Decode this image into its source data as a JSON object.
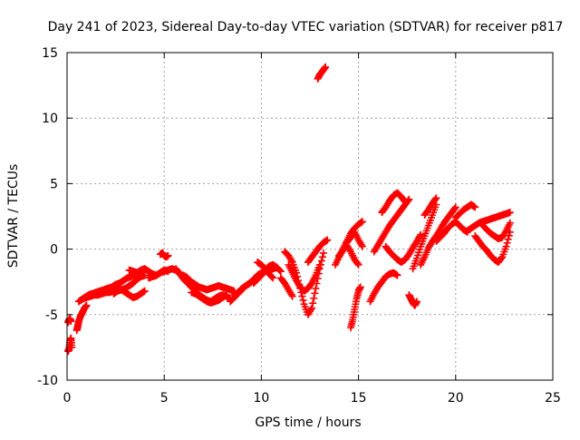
{
  "chart_data": {
    "type": "scatter",
    "title": "Day 241 of 2023, Sidereal Day-to-day VTEC variation (SDTVAR) for receiver p817",
    "xlabel": "GPS time / hours",
    "ylabel": "SDTVAR / TECUs",
    "xlim": [
      0,
      25
    ],
    "ylim": [
      -10,
      15
    ],
    "x_ticks": [
      0,
      5,
      10,
      15,
      20,
      25
    ],
    "y_ticks": [
      -10,
      -5,
      0,
      5,
      10,
      15
    ],
    "x_tick_labels": [
      "0",
      "5",
      "10",
      "15",
      "20",
      "25"
    ],
    "y_tick_labels": [
      "-10",
      "-5",
      "0",
      "5",
      "10",
      "15"
    ],
    "grid": true,
    "marker": "+",
    "series": [
      {
        "name": "SDTVAR",
        "color": "#ff0000",
        "segments": [
          {
            "x": [
              0.05,
              0.1,
              0.15,
              0.2,
              0.25
            ],
            "y": [
              -7.8,
              -7.6,
              -7.0,
              -6.8,
              -7.5
            ]
          },
          {
            "x": [
              0.05,
              0.1,
              0.15,
              0.2
            ],
            "y": [
              -5.6,
              -5.4,
              -5.3,
              -5.5
            ]
          },
          {
            "x": [
              0.5,
              0.55,
              0.6,
              0.7,
              0.8,
              0.9,
              1.0
            ],
            "y": [
              -6.2,
              -5.9,
              -5.5,
              -5.1,
              -4.8,
              -4.5,
              -4.3
            ]
          },
          {
            "x": [
              0.6,
              0.8,
              1.0,
              1.2,
              1.4,
              1.6,
              1.8,
              2.0,
              2.2,
              2.4,
              2.6,
              2.8,
              3.0,
              3.2,
              3.4,
              3.6,
              3.8,
              4.0
            ],
            "y": [
              -4.0,
              -3.8,
              -3.7,
              -3.6,
              -3.5,
              -3.5,
              -3.4,
              -3.3,
              -3.3,
              -3.2,
              -3.1,
              -3.1,
              -3.0,
              -2.8,
              -2.6,
              -2.3,
              -2.1,
              -2.0
            ]
          },
          {
            "x": [
              0.7,
              0.9,
              1.1,
              1.3,
              1.5,
              1.7,
              1.9,
              2.1,
              2.3,
              2.5,
              2.7,
              2.9,
              3.1,
              3.3,
              3.5,
              3.7
            ],
            "y": [
              -3.9,
              -3.7,
              -3.5,
              -3.4,
              -3.3,
              -3.2,
              -3.1,
              -3.0,
              -2.9,
              -2.7,
              -2.6,
              -2.4,
              -2.2,
              -2.1,
              -1.9,
              -1.8
            ]
          },
          {
            "x": [
              2.4,
              2.6,
              2.8,
              3.0,
              3.2,
              3.4,
              3.6,
              3.8,
              4.0
            ],
            "y": [
              -3.4,
              -3.2,
              -3.1,
              -3.3,
              -3.5,
              -3.7,
              -3.6,
              -3.4,
              -3.2
            ]
          },
          {
            "x": [
              3.2,
              3.4,
              3.6,
              3.8,
              4.0,
              4.2,
              4.4,
              4.6,
              4.8,
              5.0,
              5.2
            ],
            "y": [
              -1.6,
              -1.7,
              -1.8,
              -1.6,
              -1.5,
              -1.7,
              -1.9,
              -2.0,
              -1.8,
              -1.6,
              -1.7
            ]
          },
          {
            "x": [
              4.2,
              4.4,
              4.6,
              4.8,
              5.0,
              5.2,
              5.4,
              5.6,
              5.8
            ],
            "y": [
              -2.2,
              -2.1,
              -2.0,
              -1.8,
              -1.7,
              -1.6,
              -1.5,
              -1.6,
              -1.8
            ]
          },
          {
            "x": [
              4.8,
              4.9,
              5.0,
              5.1,
              5.2
            ],
            "y": [
              -0.4,
              -0.3,
              -0.5,
              -0.6,
              -0.5
            ]
          },
          {
            "x": [
              5.6,
              5.8,
              6.0,
              6.2,
              6.4,
              6.6,
              6.8,
              7.0,
              7.2,
              7.4,
              7.6,
              7.8,
              8.0,
              8.2,
              8.4
            ],
            "y": [
              -1.5,
              -1.9,
              -2.3,
              -2.6,
              -2.9,
              -3.2,
              -3.5,
              -3.7,
              -3.9,
              -4.0,
              -3.8,
              -3.6,
              -3.5,
              -3.6,
              -3.8
            ]
          },
          {
            "x": [
              6.0,
              6.2,
              6.4,
              6.6,
              6.8,
              7.0,
              7.2,
              7.4,
              7.6,
              7.8,
              8.0,
              8.2,
              8.4,
              8.6
            ],
            "y": [
              -2.0,
              -2.2,
              -2.5,
              -2.7,
              -2.9,
              -3.0,
              -3.1,
              -3.0,
              -2.9,
              -2.8,
              -2.9,
              -3.0,
              -3.1,
              -3.2
            ]
          },
          {
            "x": [
              6.4,
              6.6,
              6.8,
              7.0,
              7.2,
              7.4,
              7.6,
              7.8,
              8.0,
              8.2
            ],
            "y": [
              -3.3,
              -3.4,
              -3.6,
              -3.8,
              -4.0,
              -4.1,
              -4.0,
              -3.9,
              -3.7,
              -3.5
            ]
          },
          {
            "x": [
              8.4,
              8.6,
              8.8,
              9.0,
              9.2,
              9.4,
              9.6,
              9.8,
              10.0
            ],
            "y": [
              -4.0,
              -3.7,
              -3.4,
              -3.1,
              -2.8,
              -2.6,
              -2.4,
              -2.2,
              -2.0
            ]
          },
          {
            "x": [
              8.6,
              8.8,
              9.0,
              9.2,
              9.4,
              9.6,
              9.8,
              10.0,
              10.2,
              10.4,
              10.6,
              10.8
            ],
            "y": [
              -3.5,
              -3.3,
              -3.0,
              -2.8,
              -2.6,
              -2.3,
              -2.0,
              -1.8,
              -1.7,
              -1.6,
              -1.5,
              -1.4
            ]
          },
          {
            "x": [
              9.6,
              9.8,
              10.0,
              10.2,
              10.4,
              10.6,
              10.8,
              11.0
            ],
            "y": [
              -2.6,
              -2.3,
              -2.0,
              -1.6,
              -1.3,
              -1.2,
              -1.4,
              -1.7
            ]
          },
          {
            "x": [
              9.8,
              10.0,
              10.2,
              10.4,
              10.6
            ],
            "y": [
              -1.0,
              -1.2,
              -1.5,
              -1.9,
              -2.2
            ]
          },
          {
            "x": [
              11.2,
              11.4,
              11.6,
              11.8,
              12.0,
              12.2,
              12.4,
              12.6,
              12.8,
              13.0,
              13.2
            ],
            "y": [
              -0.2,
              -0.5,
              -1.0,
              -1.8,
              -3.0,
              -4.2,
              -5.0,
              -4.5,
              -3.0,
              -1.5,
              -0.3
            ]
          },
          {
            "x": [
              11.4,
              11.6,
              11.8,
              12.0,
              12.2,
              12.4,
              12.6,
              12.8,
              13.0
            ],
            "y": [
              -1.2,
              -1.8,
              -2.4,
              -2.9,
              -3.2,
              -3.0,
              -2.6,
              -2.0,
              -1.2
            ]
          },
          {
            "x": [
              11.0,
              11.2,
              11.4,
              11.6
            ],
            "y": [
              -2.2,
              -2.6,
              -3.1,
              -3.6
            ]
          },
          {
            "x": [
              12.4,
              12.6,
              12.8,
              13.0,
              13.2,
              13.4
            ],
            "y": [
              -1.0,
              -0.6,
              -0.2,
              0.2,
              0.5,
              0.7
            ]
          },
          {
            "x": [
              12.9,
              13.0,
              13.1,
              13.2,
              13.3
            ],
            "y": [
              13.0,
              13.3,
              13.5,
              13.7,
              13.9
            ]
          },
          {
            "x": [
              13.8,
              14.0,
              14.2,
              14.4,
              14.6,
              14.8,
              15.0,
              15.2
            ],
            "y": [
              -1.2,
              -0.6,
              0.0,
              0.6,
              1.2,
              1.6,
              1.9,
              2.1
            ]
          },
          {
            "x": [
              14.0,
              14.2,
              14.4,
              14.6,
              14.8,
              15.0
            ],
            "y": [
              -0.5,
              -0.1,
              0.3,
              -0.2,
              -0.8,
              -1.2
            ]
          },
          {
            "x": [
              14.4,
              14.6,
              14.8,
              15.0,
              15.2
            ],
            "y": [
              0.5,
              0.9,
              1.3,
              0.7,
              0.2
            ]
          },
          {
            "x": [
              14.6,
              14.7,
              14.8,
              14.9,
              15.0,
              15.1
            ],
            "y": [
              -6.0,
              -5.4,
              -4.6,
              -3.8,
              -3.2,
              -2.9
            ]
          },
          {
            "x": [
              15.6,
              15.8,
              16.0,
              16.2,
              16.4,
              16.6,
              16.8,
              17.0
            ],
            "y": [
              -4.0,
              -3.4,
              -2.9,
              -2.5,
              -2.1,
              -1.9,
              -1.8,
              -2.0
            ]
          },
          {
            "x": [
              15.8,
              16.0,
              16.2,
              16.4,
              16.6,
              16.8,
              17.0,
              17.2,
              17.4,
              17.6
            ],
            "y": [
              -0.2,
              0.3,
              0.8,
              1.3,
              1.8,
              2.2,
              2.6,
              3.0,
              3.4,
              3.8
            ]
          },
          {
            "x": [
              16.2,
              16.4,
              16.6,
              16.8,
              17.0,
              17.2,
              17.4
            ],
            "y": [
              2.8,
              3.2,
              3.7,
              4.1,
              4.3,
              4.0,
              3.6
            ]
          },
          {
            "x": [
              16.4,
              16.6,
              16.8,
              17.0,
              17.2,
              17.4,
              17.6,
              17.8,
              18.0,
              18.2
            ],
            "y": [
              0.2,
              -0.2,
              -0.5,
              -0.8,
              -1.0,
              -0.8,
              -0.4,
              0.1,
              0.6,
              1.1
            ]
          },
          {
            "x": [
              17.6,
              17.7,
              17.8,
              17.9,
              18.0
            ],
            "y": [
              -3.5,
              -3.8,
              -4.1,
              -4.3,
              -4.0
            ]
          },
          {
            "x": [
              17.8,
              18.0,
              18.2,
              18.4,
              18.6,
              18.8,
              19.0
            ],
            "y": [
              -1.5,
              -0.7,
              0.2,
              1.0,
              1.8,
              2.6,
              3.4
            ]
          },
          {
            "x": [
              18.2,
              18.4,
              18.6,
              18.8,
              19.0,
              19.2,
              19.4,
              19.6,
              19.8,
              20.0
            ],
            "y": [
              -1.2,
              -0.6,
              0.1,
              0.6,
              1.0,
              1.5,
              2.0,
              2.4,
              2.8,
              3.2
            ]
          },
          {
            "x": [
              18.4,
              18.6,
              18.8,
              19.0
            ],
            "y": [
              2.6,
              3.0,
              3.5,
              3.9
            ]
          },
          {
            "x": [
              19.0,
              19.2,
              19.4,
              19.6,
              19.8,
              20.0,
              20.2,
              20.4,
              20.6
            ],
            "y": [
              0.6,
              0.9,
              1.2,
              1.6,
              1.9,
              2.1,
              1.8,
              1.5,
              1.3
            ]
          },
          {
            "x": [
              20.0,
              20.2,
              20.4,
              20.6,
              20.8,
              21.0
            ],
            "y": [
              2.4,
              2.7,
              3.0,
              3.2,
              3.4,
              3.2
            ]
          },
          {
            "x": [
              20.6,
              20.8,
              21.0,
              21.2,
              21.4,
              21.6,
              21.8,
              22.0,
              22.2,
              22.4,
              22.6,
              22.8
            ],
            "y": [
              1.4,
              1.6,
              1.8,
              2.0,
              2.1,
              2.2,
              2.3,
              2.4,
              2.5,
              2.6,
              2.7,
              2.8
            ]
          },
          {
            "x": [
              21.0,
              21.2,
              21.4,
              21.6,
              21.8,
              22.0,
              22.2,
              22.4,
              22.6,
              22.8
            ],
            "y": [
              1.0,
              0.6,
              0.2,
              -0.1,
              -0.5,
              -0.8,
              -1.0,
              -0.6,
              0.2,
              1.3
            ]
          },
          {
            "x": [
              21.4,
              21.6,
              21.8,
              22.0,
              22.2,
              22.4,
              22.6,
              22.8
            ],
            "y": [
              1.8,
              1.5,
              1.2,
              1.0,
              0.8,
              0.9,
              1.4,
              2.0
            ]
          }
        ]
      }
    ]
  }
}
